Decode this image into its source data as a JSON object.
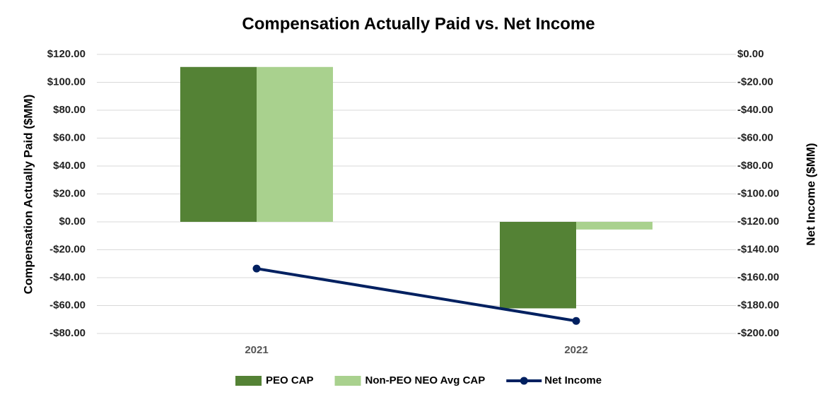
{
  "chart_data": {
    "type": "bar",
    "title": "Compensation Actually Paid vs. Net Income",
    "y_label": "Compensation Actually Paid ($MM)",
    "y2_label": "Net Income ($MM)",
    "categories": [
      "2021",
      "2022"
    ],
    "series": [
      {
        "name": "PEO CAP",
        "type": "bar",
        "color": "#548235",
        "values": [
          111,
          -62
        ]
      },
      {
        "name": "Non-PEO NEO Avg CAP",
        "type": "bar",
        "color": "#a9d18e",
        "values": [
          111,
          -5.5
        ]
      },
      {
        "name": "Net Income",
        "type": "line",
        "axis": "y2",
        "color": "#002060",
        "values": [
          -153.5,
          -191
        ]
      }
    ],
    "ylim": [
      -80,
      120
    ],
    "yticks": [
      {
        "value": -80,
        "label": "-$80.00"
      },
      {
        "value": -60,
        "label": "-$60.00"
      },
      {
        "value": -40,
        "label": "-$40.00"
      },
      {
        "value": -20,
        "label": "-$20.00"
      },
      {
        "value": 0,
        "label": "$0.00"
      },
      {
        "value": 20,
        "label": "$20.00"
      },
      {
        "value": 40,
        "label": "$40.00"
      },
      {
        "value": 60,
        "label": "$60.00"
      },
      {
        "value": 80,
        "label": "$80.00"
      },
      {
        "value": 100,
        "label": "$100.00"
      },
      {
        "value": 120,
        "label": "$120.00"
      }
    ],
    "y2lim": [
      -200,
      0
    ],
    "y2ticks": [
      {
        "value": -200,
        "label": "-$200.00"
      },
      {
        "value": -180,
        "label": "-$180.00"
      },
      {
        "value": -160,
        "label": "-$160.00"
      },
      {
        "value": -140,
        "label": "-$140.00"
      },
      {
        "value": -120,
        "label": "-$120.00"
      },
      {
        "value": -100,
        "label": "-$100.00"
      },
      {
        "value": -80,
        "label": "-$80.00"
      },
      {
        "value": -60,
        "label": "-$60.00"
      },
      {
        "value": -40,
        "label": "-$40.00"
      },
      {
        "value": -20,
        "label": "-$20.00"
      },
      {
        "value": 0,
        "label": "$0.00"
      }
    ],
    "grid": true,
    "legend": "bottom"
  }
}
